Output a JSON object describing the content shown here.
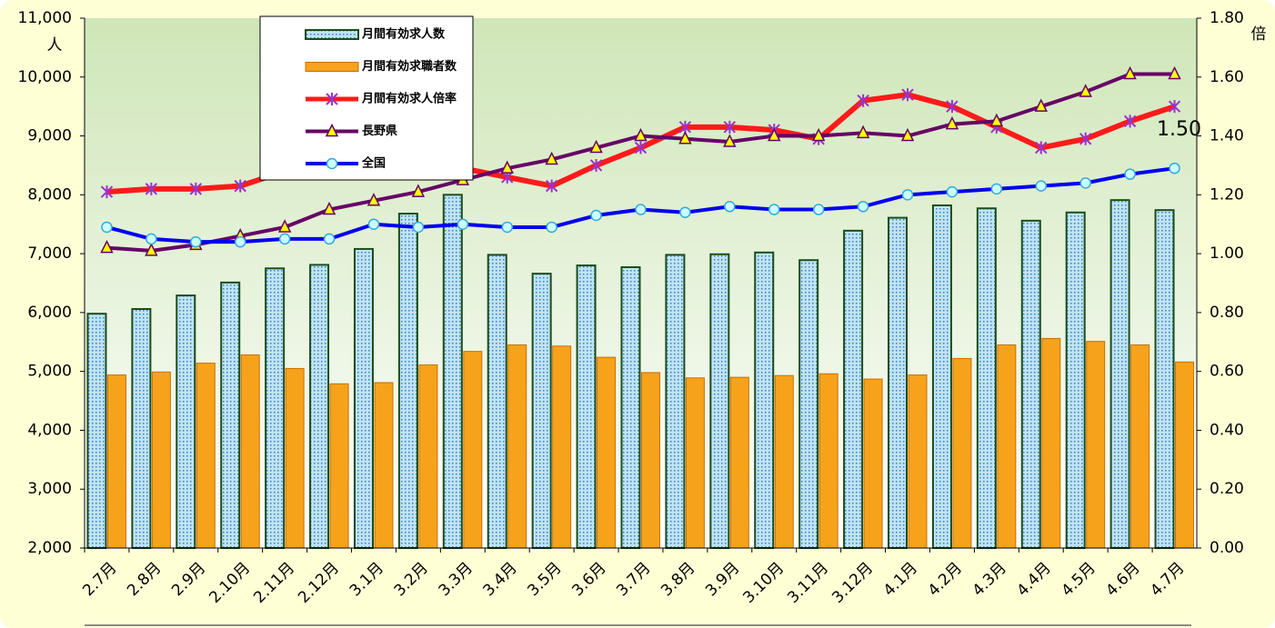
{
  "chart_data": {
    "type": "bar-line",
    "categories": [
      "2.7月",
      "2.8月",
      "2.9月",
      "2.10月",
      "2.11月",
      "2.12月",
      "3.1月",
      "3.2月",
      "3.3月",
      "3.4月",
      "3.5月",
      "3.6月",
      "3.7月",
      "3.8月",
      "3.9月",
      "3.10月",
      "3.11月",
      "3.12月",
      "4.1月",
      "4.2月",
      "4.3月",
      "4.4月",
      "4.5月",
      "4.6月",
      "4.7月"
    ],
    "y_label": "人",
    "y2_label": "倍",
    "ylim": [
      2000,
      11000
    ],
    "yticks": [
      {
        "value": 2000,
        "label": "2,000"
      },
      {
        "value": 3000,
        "label": "3,000"
      },
      {
        "value": 4000,
        "label": "4,000"
      },
      {
        "value": 5000,
        "label": "5,000"
      },
      {
        "value": 6000,
        "label": "6,000"
      },
      {
        "value": 7000,
        "label": "7,000"
      },
      {
        "value": 8000,
        "label": "8,000"
      },
      {
        "value": 9000,
        "label": "9,000"
      },
      {
        "value": 10000,
        "label": "10,000"
      },
      {
        "value": 11000,
        "label": "11,000"
      }
    ],
    "y2lim": [
      0,
      1.8
    ],
    "y2ticks": [
      {
        "value": 0,
        "label": "0.00"
      },
      {
        "value": 0.2,
        "label": "0.20"
      },
      {
        "value": 0.4,
        "label": "0.40"
      },
      {
        "value": 0.6,
        "label": "0.60"
      },
      {
        "value": 0.8,
        "label": "0.80"
      },
      {
        "value": 1,
        "label": "1.00"
      },
      {
        "value": 1.2,
        "label": "1.20"
      },
      {
        "value": 1.4,
        "label": "1.40"
      },
      {
        "value": 1.6,
        "label": "1.60"
      },
      {
        "value": 1.8,
        "label": "1.80"
      }
    ],
    "series": [
      {
        "name": "月間有効求人数",
        "type": "bar",
        "color": "#bfe3f5",
        "values": [
          5980,
          6060,
          6290,
          6510,
          6750,
          6810,
          7080,
          7680,
          8000,
          6980,
          6660,
          6800,
          6770,
          6980,
          6990,
          7020,
          6890,
          7390,
          7610,
          7820,
          7770,
          7560,
          7700,
          7910,
          7740
        ]
      },
      {
        "name": "月間有効求職者数",
        "type": "bar",
        "color": "#f7a21b",
        "values": [
          4940,
          4990,
          5140,
          5280,
          5050,
          4790,
          4810,
          5110,
          5340,
          5450,
          5430,
          5240,
          4980,
          4890,
          4900,
          4930,
          4960,
          4870,
          4940,
          5220,
          5450,
          5560,
          5510,
          5450,
          5160
        ]
      },
      {
        "name": "月間有効求人倍率",
        "type": "line",
        "axis": "y2",
        "color": "#ff1a1a",
        "values": [
          1.21,
          1.22,
          1.22,
          1.23,
          1.28,
          1.31,
          1.31,
          1.3,
          1.29,
          1.26,
          1.23,
          1.3,
          1.36,
          1.43,
          1.43,
          1.42,
          1.39,
          1.52,
          1.54,
          1.5,
          1.43,
          1.36,
          1.39,
          1.45,
          1.5
        ],
        "value_labels": [
          null,
          null,
          null,
          null,
          null,
          null,
          null,
          null,
          null,
          null,
          null,
          null,
          null,
          null,
          null,
          null,
          null,
          null,
          null,
          null,
          null,
          null,
          null,
          null,
          "1.50"
        ]
      },
      {
        "name": "長野県",
        "type": "line",
        "axis": "y2",
        "color": "#660066",
        "values": [
          1.02,
          1.01,
          1.03,
          1.06,
          1.09,
          1.15,
          1.18,
          1.21,
          1.25,
          1.29,
          1.32,
          1.36,
          1.4,
          1.39,
          1.38,
          1.4,
          1.4,
          1.41,
          1.4,
          1.44,
          1.45,
          1.5,
          1.55,
          1.61,
          1.61
        ]
      },
      {
        "name": "全国",
        "type": "line",
        "axis": "y2",
        "color": "#0000ee",
        "values": [
          1.09,
          1.05,
          1.04,
          1.04,
          1.05,
          1.05,
          1.1,
          1.09,
          1.1,
          1.09,
          1.09,
          1.13,
          1.15,
          1.14,
          1.16,
          1.15,
          1.15,
          1.16,
          1.2,
          1.21,
          1.22,
          1.23,
          1.24,
          1.27,
          1.29
        ]
      }
    ]
  }
}
